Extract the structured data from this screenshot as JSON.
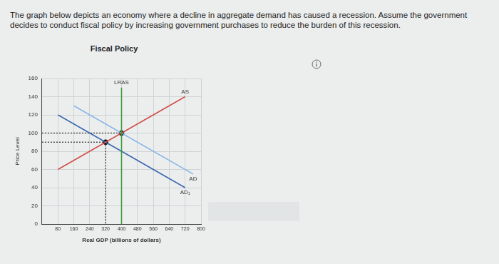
{
  "chart_data": {
    "type": "line",
    "description": "The graph below depicts an economy where a decline in aggregate demand has caused a recession. Assume the government decides to conduct fiscal policy by increasing government purchases to reduce the burden of this recession.",
    "title": "Fiscal Policy",
    "x_label": "Real GDP (billions of dollars)",
    "y_label": "Price Level",
    "xlim": [
      0,
      800
    ],
    "xticks": [
      80,
      160,
      240,
      320,
      400,
      480,
      560,
      640,
      720,
      800
    ],
    "ylim": [
      0,
      160
    ],
    "yticks": [
      0,
      20,
      40,
      60,
      80,
      100,
      120,
      140,
      160
    ],
    "grid": true,
    "series": [
      {
        "name": "LRAS",
        "color": "#3d9a3d",
        "x": [
          400,
          400
        ],
        "values": [
          0,
          150
        ]
      },
      {
        "name": "AS",
        "color": "#d0504a",
        "x": [
          80,
          720
        ],
        "values": [
          60,
          140
        ]
      },
      {
        "name": "AD",
        "color": "#86b6e6",
        "x": [
          160,
          760
        ],
        "values": [
          130,
          55
        ]
      },
      {
        "name": "AD₁",
        "color": "#3b68b0",
        "x": [
          80,
          720
        ],
        "values": [
          120,
          40
        ]
      },
      {
        "color": "#333333",
        "line_style": "dotted",
        "x": [
          0,
          400
        ],
        "values": [
          100,
          100
        ]
      },
      {
        "color": "#333333",
        "line_style": "dotted",
        "x": [
          0,
          320
        ],
        "values": [
          90,
          90
        ]
      },
      {
        "color": "#333333",
        "line_style": "dotted",
        "x": [
          320,
          320
        ],
        "values": [
          90,
          0
        ]
      },
      {
        "color": "#111111",
        "type": "scatter",
        "marker": "circle",
        "x": [
          320,
          400
        ],
        "values": [
          90,
          100
        ]
      }
    ]
  }
}
